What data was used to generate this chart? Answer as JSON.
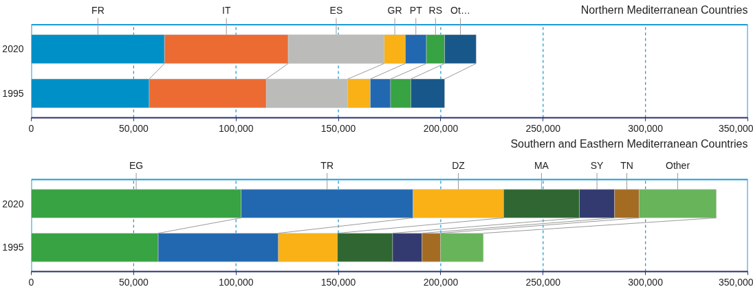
{
  "chart_data": [
    {
      "type": "bar",
      "orientation": "horizontal",
      "stacked": true,
      "title": "Northern Mediterranean Countries",
      "categories": [
        "2020",
        "1995"
      ],
      "series": [
        {
          "name": "FR",
          "color": "#0090c8",
          "values": [
            65100,
            57600
          ]
        },
        {
          "name": "IT",
          "color": "#ec6b33",
          "values": [
            60400,
            57200
          ]
        },
        {
          "name": "ES",
          "color": "#bbbbb9",
          "values": [
            46900,
            39800
          ]
        },
        {
          "name": "GR",
          "color": "#f9b116",
          "values": [
            10300,
            11000
          ]
        },
        {
          "name": "PT",
          "color": "#2268b0",
          "values": [
            10300,
            9900
          ]
        },
        {
          "name": "RS",
          "color": "#37a342",
          "values": [
            8900,
            9900
          ]
        },
        {
          "name": "Ot…",
          "color": "#18578a",
          "values": [
            15400,
            16500
          ]
        }
      ],
      "xlim": [
        0,
        350000
      ],
      "xticks": [
        {
          "value": 0,
          "label": "0"
        },
        {
          "value": 50000,
          "label": "50,000"
        },
        {
          "value": 100000,
          "label": "100,000"
        },
        {
          "value": 150000,
          "label": "150,000"
        },
        {
          "value": 200000,
          "label": "200,000"
        },
        {
          "value": 250000,
          "label": "250,000"
        },
        {
          "value": 300000,
          "label": "300,000"
        },
        {
          "value": 350000,
          "label": "350,000"
        }
      ],
      "grid": "x"
    },
    {
      "type": "bar",
      "orientation": "horizontal",
      "stacked": true,
      "title": "Southern and Easthern Mediterranean Countries",
      "categories": [
        "2020",
        "1995"
      ],
      "series": [
        {
          "name": "EG",
          "color": "#37a342",
          "values": [
            102500,
            62000
          ]
        },
        {
          "name": "TR",
          "color": "#2268b0",
          "values": [
            84000,
            58700
          ]
        },
        {
          "name": "DZ",
          "color": "#f9b116",
          "values": [
            44200,
            28800
          ]
        },
        {
          "name": "MA",
          "color": "#2f6631",
          "values": [
            37000,
            27000
          ]
        },
        {
          "name": "SY",
          "color": "#323a70",
          "values": [
            17200,
            14400
          ]
        },
        {
          "name": "TN",
          "color": "#a36c22",
          "values": [
            12000,
            9000
          ]
        },
        {
          "name": "Other",
          "color": "#68b45a",
          "values": [
            37700,
            20900
          ]
        }
      ],
      "xlim": [
        0,
        350000
      ],
      "xticks": [
        {
          "value": 0,
          "label": "0"
        },
        {
          "value": 50000,
          "label": "50,000"
        },
        {
          "value": 100000,
          "label": "100,000"
        },
        {
          "value": 150000,
          "label": "150,000"
        },
        {
          "value": 200000,
          "label": "200,000"
        },
        {
          "value": 250000,
          "label": "250,000"
        },
        {
          "value": 300000,
          "label": "300,000"
        },
        {
          "value": 350000,
          "label": "350,000"
        }
      ],
      "grid": "x"
    }
  ]
}
